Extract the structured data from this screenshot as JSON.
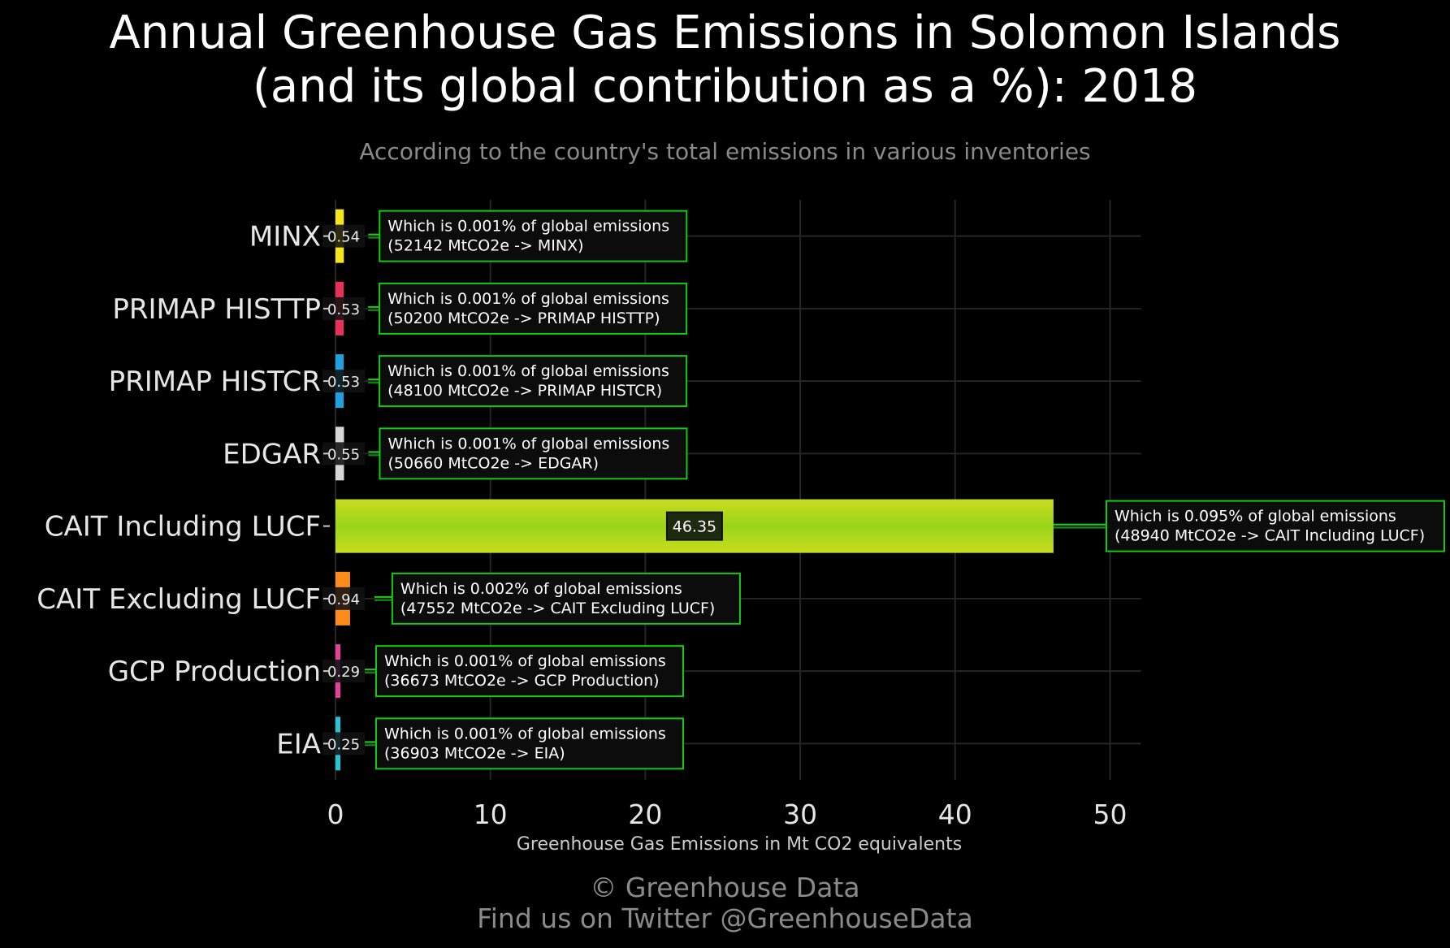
{
  "chart_data": {
    "type": "bar",
    "orientation": "horizontal",
    "title": [
      "Annual Greenhouse Gas Emissions in Solomon Islands",
      "(and its global contribution as a %): 2018"
    ],
    "subtitle": "According to the country's total emissions in various inventories",
    "xlabel": "Greenhouse Gas Emissions in Mt CO2 equivalents",
    "ylabel": "",
    "xlim": [
      0,
      52
    ],
    "xticks": [
      0,
      10,
      20,
      30,
      40,
      50
    ],
    "grid": true,
    "categories": [
      "MINX",
      "PRIMAP HISTTP",
      "PRIMAP HISTCR",
      "EDGAR",
      "CAIT Including LUCF",
      "CAIT Excluding LUCF",
      "GCP Production",
      "EIA"
    ],
    "values": [
      0.54,
      0.53,
      0.53,
      0.55,
      46.35,
      0.94,
      0.29,
      0.25
    ],
    "value_labels": [
      "0.54",
      "0.53",
      "0.53",
      "0.55",
      "46.35",
      "0.94",
      "0.29",
      "0.25"
    ],
    "colors": [
      "#f5e51b",
      "#e8305a",
      "#1fa0e0",
      "#d6d6d6",
      "#c4da1f",
      "#ff8c1a",
      "#e8409a",
      "#1ec8d8"
    ],
    "annotations": [
      [
        "Which is 0.001% of global emissions",
        "(52142 MtCO2e -> MINX)"
      ],
      [
        "Which is 0.001% of global emissions",
        "(50200 MtCO2e -> PRIMAP HISTTP)"
      ],
      [
        "Which is 0.001% of global emissions",
        "(48100 MtCO2e -> PRIMAP HISTCR)"
      ],
      [
        "Which is 0.001% of global emissions",
        "(50660 MtCO2e -> EDGAR)"
      ],
      [
        "Which is 0.095% of global emissions",
        "(48940 MtCO2e -> CAIT Including LUCF)"
      ],
      [
        "Which is 0.002% of global emissions",
        "(47552 MtCO2e -> CAIT Excluding LUCF)"
      ],
      [
        "Which is 0.001% of global emissions",
        "(36673 MtCO2e -> GCP Production)"
      ],
      [
        "Which is 0.001% of global emissions",
        "(36903 MtCO2e -> EIA)"
      ]
    ]
  },
  "credit": [
    "© Greenhouse Data",
    "Find us on Twitter @GreenhouseData"
  ]
}
